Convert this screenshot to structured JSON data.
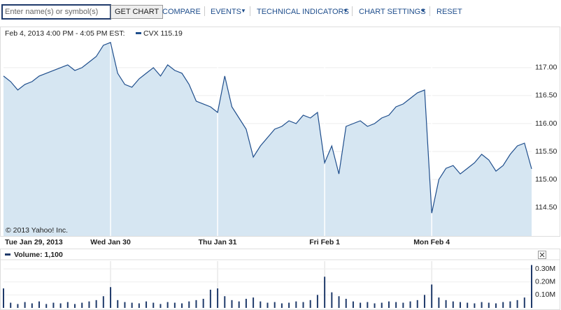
{
  "toolbar": {
    "search_placeholder": "Enter name(s) or symbol(s)",
    "button": "GET CHART",
    "links": [
      "COMPARE",
      "EVENTS",
      "TECHNICAL INDICATORS",
      "CHART SETTINGS",
      "RESET"
    ]
  },
  "chart_data": [
    {
      "type": "area",
      "header": "Feb 4, 2013 4:00 PM - 4:05 PM EST:",
      "legend_label": "CVX 115.19",
      "copyright": "© 2013 Yahoo! Inc.",
      "categories": [
        "Tue Jan 29, 2013",
        null,
        null,
        null,
        null,
        null,
        null,
        null,
        null,
        null,
        null,
        null,
        null,
        null,
        null,
        "Wed Jan 30",
        null,
        null,
        null,
        null,
        null,
        null,
        null,
        null,
        null,
        null,
        null,
        null,
        null,
        null,
        "Thu Jan 31",
        null,
        null,
        null,
        null,
        null,
        null,
        null,
        null,
        null,
        null,
        null,
        null,
        null,
        null,
        "Fri Feb 1",
        null,
        null,
        null,
        null,
        null,
        null,
        null,
        null,
        null,
        null,
        null,
        null,
        null,
        null,
        "Mon Feb 4",
        null,
        null,
        null,
        null,
        null,
        null,
        null,
        null,
        null,
        null,
        null,
        null,
        null,
        null
      ],
      "series": [
        {
          "name": "CVX",
          "color": "#1f4e8c",
          "fill": "#d6e6f2",
          "values": [
            116.85,
            116.75,
            116.6,
            116.7,
            116.75,
            116.85,
            116.9,
            116.95,
            117.0,
            117.05,
            116.95,
            117.0,
            117.1,
            117.2,
            117.4,
            117.45,
            116.9,
            116.7,
            116.65,
            116.8,
            116.9,
            117.0,
            116.85,
            117.05,
            116.95,
            116.9,
            116.7,
            116.4,
            116.35,
            116.3,
            116.2,
            116.85,
            116.3,
            116.1,
            115.9,
            115.4,
            115.6,
            115.75,
            115.9,
            115.95,
            116.05,
            116.0,
            116.15,
            116.1,
            116.2,
            115.3,
            115.6,
            115.1,
            115.95,
            116.0,
            116.05,
            115.95,
            116.0,
            116.1,
            116.15,
            116.3,
            116.35,
            116.45,
            116.55,
            116.6,
            114.4,
            115.0,
            115.2,
            115.25,
            115.1,
            115.2,
            115.3,
            115.45,
            115.35,
            115.15,
            115.25,
            115.45,
            115.6,
            115.65,
            115.19
          ]
        }
      ],
      "ylim": [
        113.99,
        117.71
      ],
      "yticks": [
        {
          "value": 114.5,
          "label": "114.50"
        },
        {
          "value": 115,
          "label": "115.00"
        },
        {
          "value": 115.5,
          "label": "115.50"
        },
        {
          "value": 116,
          "label": "116.00"
        },
        {
          "value": 116.5,
          "label": "116.50"
        },
        {
          "value": 117,
          "label": "117.00"
        }
      ],
      "grid": true
    },
    {
      "type": "bar",
      "legend_label": "Volume: 1,100",
      "series": [
        {
          "name": "Volume",
          "color": "#1f3a6a",
          "values": [
            150000,
            40000,
            30000,
            45000,
            35000,
            50000,
            30000,
            40000,
            35000,
            45000,
            30000,
            40000,
            50000,
            60000,
            90000,
            160000,
            60000,
            45000,
            40000,
            35000,
            50000,
            40000,
            30000,
            45000,
            40000,
            35000,
            50000,
            60000,
            70000,
            140000,
            150000,
            90000,
            60000,
            50000,
            70000,
            80000,
            50000,
            40000,
            45000,
            35000,
            40000,
            50000,
            45000,
            60000,
            100000,
            240000,
            120000,
            90000,
            70000,
            50000,
            40000,
            45000,
            35000,
            40000,
            50000,
            45000,
            40000,
            50000,
            60000,
            100000,
            180000,
            80000,
            60000,
            50000,
            45000,
            40000,
            35000,
            45000,
            40000,
            35000,
            45000,
            50000,
            60000,
            80000,
            330000
          ]
        }
      ],
      "ylim": [
        0,
        360000
      ],
      "yticks": [
        {
          "value": 100000,
          "label": "0.10M"
        },
        {
          "value": 200000,
          "label": "0.20M"
        },
        {
          "value": 300000,
          "label": "0.30M"
        }
      ],
      "grid": true
    }
  ]
}
